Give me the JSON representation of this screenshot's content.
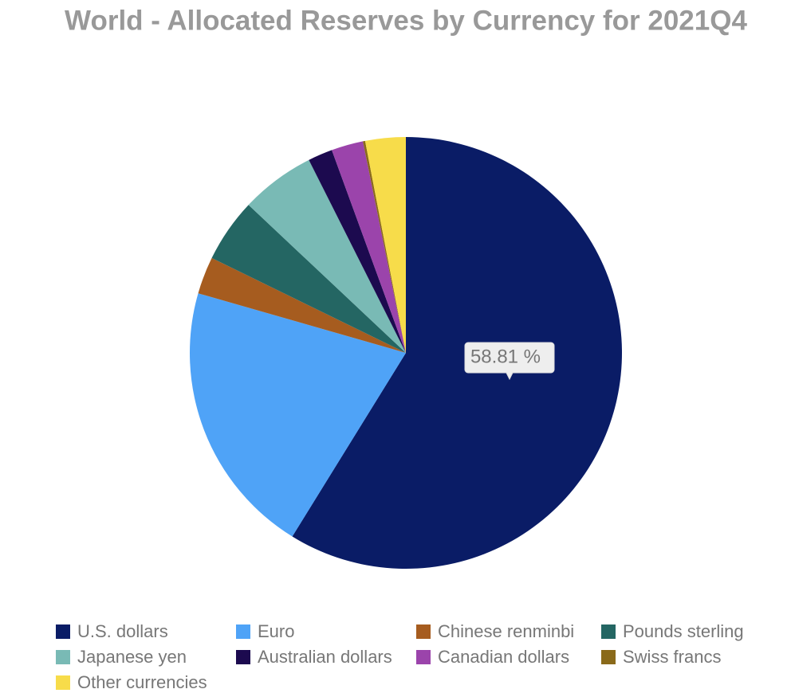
{
  "chart_data": {
    "type": "pie",
    "title": "World - Allocated Reserves by Currency for 2021Q4",
    "categories": [
      "U.S. dollars",
      "Euro",
      "Chinese renminbi",
      "Pounds sterling",
      "Japanese yen",
      "Australian dollars",
      "Canadian dollars",
      "Swiss francs",
      "Other currencies"
    ],
    "values": [
      58.81,
      20.64,
      2.79,
      4.78,
      5.57,
      1.84,
      2.38,
      0.17,
      3.02
    ],
    "value_labels": [
      "58.81 %",
      null,
      null,
      null,
      null,
      null,
      null,
      null,
      null
    ],
    "colors": [
      "#0a1c66",
      "#4fa3f7",
      "#a65c1f",
      "#246663",
      "#79bab5",
      "#1c0a4f",
      "#9b44ab",
      "#8a6a1a",
      "#f7dc4a"
    ]
  }
}
